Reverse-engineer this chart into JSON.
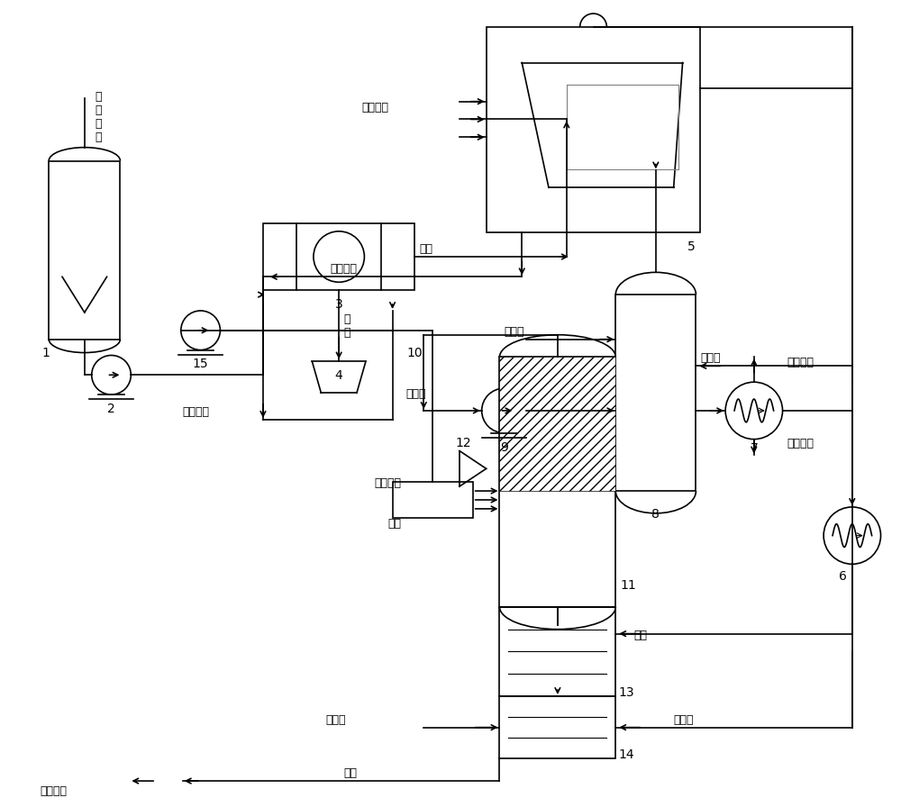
{
  "bg_color": "#ffffff",
  "line_color": "#000000",
  "fig_width": 10.0,
  "fig_height": 8.96,
  "labels": {
    "desulfurization_waste": "脱\n硫\n废\n液",
    "filtrate": "滤液",
    "filter_residue": "滤\n渣",
    "hot_concentrate1": "热浓缩液",
    "hot_concentrate2": "热浓缩液",
    "saturated_steam": "饱和蒸汽",
    "softened_water": "软化水",
    "pyrolysis_gas": "热解气",
    "condensate": "冷凝液",
    "desulfurization_section": "脱硫工段",
    "biochemical_treatment": "生化处理",
    "coke_oven_gas": "焦炉煤气",
    "oxygen": "氧气",
    "steam": "蒸汽",
    "condensed_water": "冷凝水",
    "fresh_water": "新鲜水",
    "alkali_solution": "碱液",
    "desulfurization_alkali_source": "脱硫碱源",
    "num1": "1",
    "num2": "2",
    "num3": "3",
    "num4": "4",
    "num5": "5",
    "num6": "6",
    "num7": "7",
    "num8": "8",
    "num9": "9",
    "num10": "10",
    "num11": "11",
    "num12": "12",
    "num13": "13",
    "num14": "14",
    "num15": "15"
  }
}
